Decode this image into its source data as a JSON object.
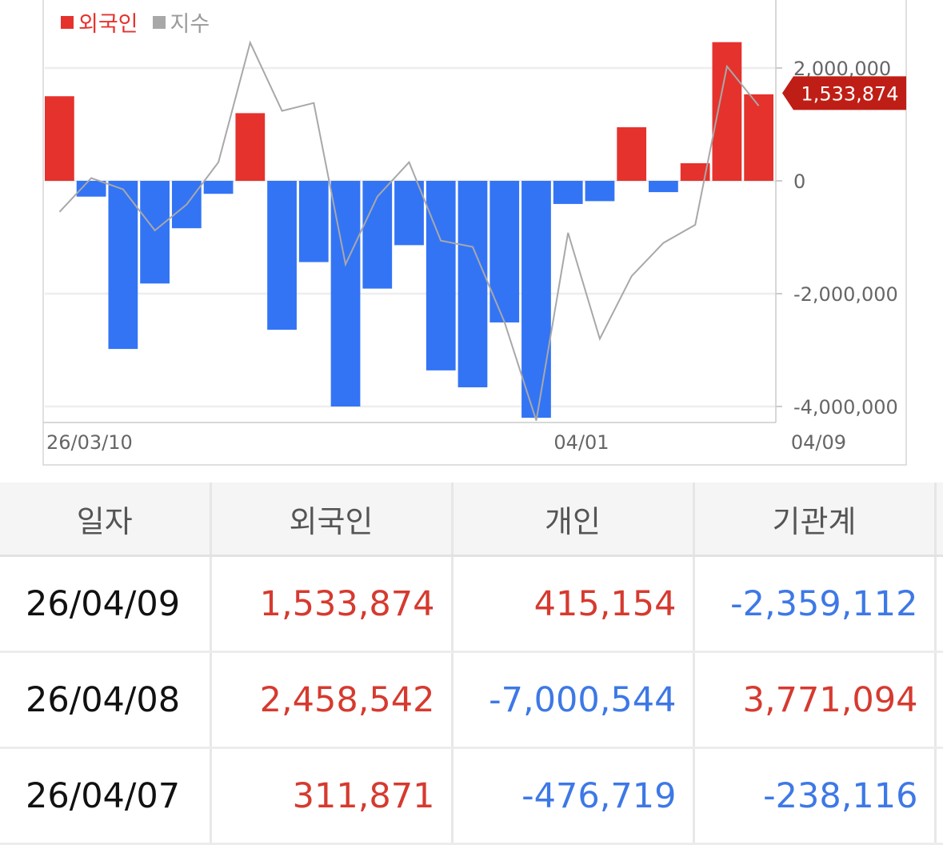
{
  "colors": {
    "foreign_positive": "#e5322d",
    "foreign_negative": "#3374f5",
    "index_line": "#a8a8a8",
    "callout_bg": "#bf1e16",
    "table_positive": "#d63a2f",
    "table_negative": "#3d78e6"
  },
  "chart_data": {
    "type": "bar",
    "legend": [
      "외국인",
      "지수"
    ],
    "legend_position": "top-left",
    "x_tick_labels": [
      "26/03/10",
      "04/01",
      "04/09"
    ],
    "y_tick_labels": [
      "2,000,000",
      "0",
      "-2,000,000",
      "-4,000,000"
    ],
    "y_ticks": [
      2000000,
      0,
      -2000000,
      -4000000
    ],
    "ylim": [
      -4300000,
      3200000
    ],
    "grid": true,
    "callout": "1,533,874",
    "series": [
      {
        "name": "외국인",
        "type": "bar",
        "values": [
          1500000,
          -280000,
          -2980000,
          -1820000,
          -840000,
          -230000,
          1200000,
          -2640000,
          -1440000,
          -4000000,
          -1910000,
          -1140000,
          -3360000,
          -3660000,
          -2510000,
          -4200000,
          -410000,
          -360000,
          950000,
          -200000,
          311871,
          2458542,
          1533874
        ]
      },
      {
        "name": "지수",
        "type": "line",
        "values": [
          -550000,
          50000,
          -150000,
          -880000,
          -420000,
          330000,
          2450000,
          1240000,
          1380000,
          -1480000,
          -280000,
          330000,
          -1060000,
          -1170000,
          -2500000,
          -4250000,
          -920000,
          -2800000,
          -1690000,
          -1100000,
          -780000,
          2030000,
          1330000
        ]
      }
    ]
  },
  "table": {
    "headers": [
      "일자",
      "외국인",
      "개인",
      "기관계"
    ],
    "rows": [
      {
        "date": "26/04/09",
        "foreign": "1,533,874",
        "individual": "415,154",
        "institution": "-2,359,112"
      },
      {
        "date": "26/04/08",
        "foreign": "2,458,542",
        "individual": "-7,000,544",
        "institution": "3,771,094"
      },
      {
        "date": "26/04/07",
        "foreign": "311,871",
        "individual": "-476,719",
        "institution": "-238,116"
      }
    ]
  }
}
